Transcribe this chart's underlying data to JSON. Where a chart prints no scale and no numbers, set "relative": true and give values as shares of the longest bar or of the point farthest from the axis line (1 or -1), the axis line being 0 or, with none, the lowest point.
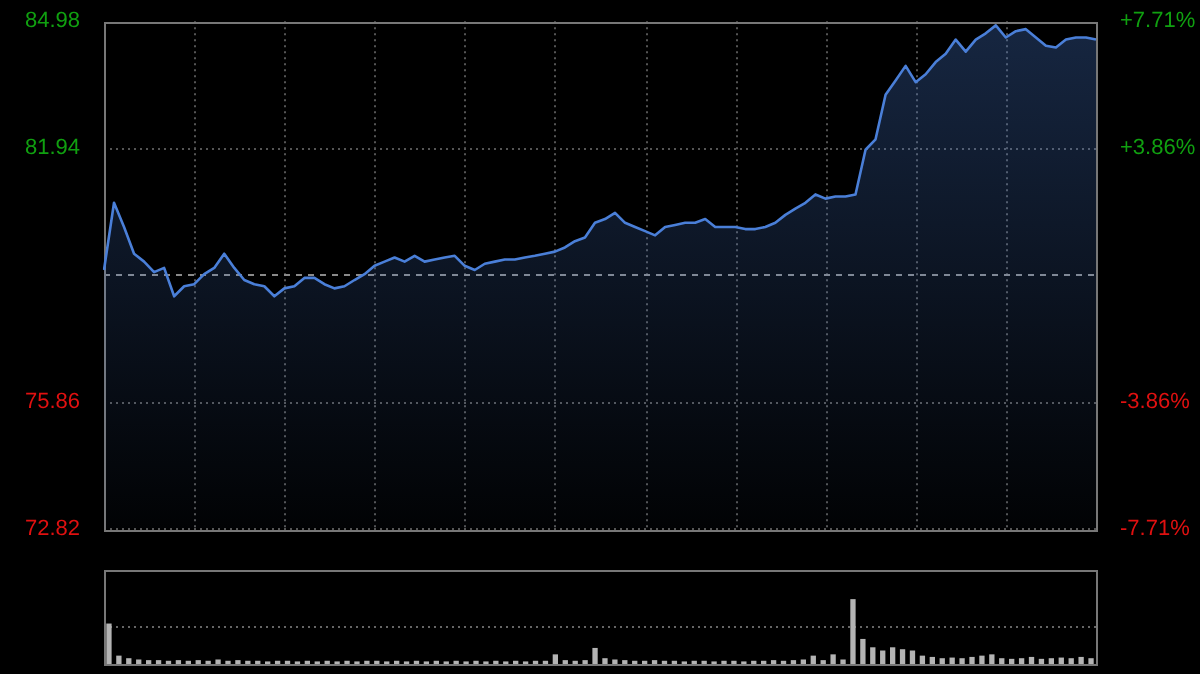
{
  "chart_data": [
    {
      "type": "area",
      "categories": [
        null,
        null,
        null,
        null,
        null,
        null,
        null,
        null,
        null,
        null,
        null,
        null,
        null,
        null,
        null,
        null,
        null,
        null,
        null,
        null,
        null,
        null,
        null,
        null,
        null,
        null,
        null,
        null,
        null,
        null,
        null,
        null,
        null,
        null,
        null,
        null,
        null,
        null,
        null,
        null,
        null,
        null,
        null,
        null,
        null,
        null,
        null,
        null,
        null,
        null,
        null,
        null,
        null,
        null,
        null,
        null,
        null,
        null,
        null,
        null,
        null,
        null,
        null,
        null,
        null,
        null,
        null,
        null,
        null,
        null,
        null,
        null,
        null,
        null,
        null,
        null,
        null,
        null,
        null,
        null,
        null,
        null,
        null,
        null,
        null,
        null,
        null,
        null,
        null,
        null,
        null,
        null,
        null,
        null,
        null,
        null,
        null,
        null,
        null,
        null
      ],
      "values": [
        79.02,
        80.63,
        80.05,
        79.41,
        79.22,
        78.97,
        79.07,
        78.39,
        78.63,
        78.68,
        78.92,
        79.07,
        79.41,
        79.07,
        78.78,
        78.68,
        78.63,
        78.39,
        78.58,
        78.63,
        78.83,
        78.83,
        78.68,
        78.58,
        78.63,
        78.78,
        78.92,
        79.12,
        79.22,
        79.32,
        79.22,
        79.36,
        79.22,
        79.27,
        79.32,
        79.36,
        79.12,
        79.02,
        79.17,
        79.22,
        79.27,
        79.27,
        79.32,
        79.36,
        79.41,
        79.46,
        79.56,
        79.71,
        79.8,
        80.15,
        80.24,
        80.39,
        80.15,
        80.05,
        79.95,
        79.85,
        80.05,
        80.1,
        80.15,
        80.15,
        80.24,
        80.05,
        80.05,
        80.05,
        80.0,
        80.0,
        80.05,
        80.15,
        80.34,
        80.49,
        80.63,
        80.83,
        80.73,
        80.78,
        80.78,
        80.83,
        81.9,
        82.15,
        83.22,
        83.56,
        83.91,
        83.52,
        83.71,
        84.0,
        84.2,
        84.54,
        84.25,
        84.54,
        84.69,
        84.88,
        84.59,
        84.74,
        84.79,
        84.59,
        84.39,
        84.35,
        84.54,
        84.59,
        84.59,
        84.54
      ],
      "color": "#4a7fd8",
      "ylim": [
        72.82,
        84.98
      ],
      "yticks": [
        72.82,
        75.86,
        81.94,
        84.98
      ],
      "y2lim": [
        -7.71,
        7.71
      ],
      "y2ticks": [
        {
          "value": -7.71,
          "label": "-7.71%"
        },
        {
          "value": -3.86,
          "label": "-3.86%"
        },
        {
          "value": 3.86,
          "label": "+3.86%"
        },
        {
          "value": 7.71,
          "label": "+7.71%"
        }
      ],
      "ref_lines": [
        {
          "axis": "y",
          "value": 78.9,
          "color": "#8a8a8a",
          "line_style": "dashed"
        }
      ],
      "grid": true,
      "legend": false,
      "tick_labels": "y"
    },
    {
      "type": "bar",
      "relative": true,
      "categories": [
        null,
        null,
        null,
        null,
        null,
        null,
        null,
        null,
        null,
        null,
        null,
        null,
        null,
        null,
        null,
        null,
        null,
        null,
        null,
        null,
        null,
        null,
        null,
        null,
        null,
        null,
        null,
        null,
        null,
        null,
        null,
        null,
        null,
        null,
        null,
        null,
        null,
        null,
        null,
        null,
        null,
        null,
        null,
        null,
        null,
        null,
        null,
        null,
        null,
        null,
        null,
        null,
        null,
        null,
        null,
        null,
        null,
        null,
        null,
        null,
        null,
        null,
        null,
        null,
        null,
        null,
        null,
        null,
        null,
        null,
        null,
        null,
        null,
        null,
        null,
        null,
        null,
        null,
        null,
        null,
        null,
        null,
        null,
        null,
        null,
        null,
        null,
        null,
        null,
        null,
        null,
        null,
        null,
        null,
        null,
        null,
        null,
        null,
        null,
        null
      ],
      "values": [
        0.62,
        0.12,
        0.08,
        0.06,
        0.05,
        0.05,
        0.04,
        0.05,
        0.04,
        0.05,
        0.04,
        0.06,
        0.04,
        0.05,
        0.04,
        0.04,
        0.03,
        0.04,
        0.04,
        0.03,
        0.04,
        0.03,
        0.04,
        0.03,
        0.04,
        0.03,
        0.04,
        0.04,
        0.03,
        0.04,
        0.03,
        0.04,
        0.03,
        0.04,
        0.03,
        0.04,
        0.03,
        0.04,
        0.03,
        0.04,
        0.03,
        0.04,
        0.03,
        0.04,
        0.04,
        0.14,
        0.05,
        0.04,
        0.05,
        0.24,
        0.08,
        0.06,
        0.05,
        0.04,
        0.04,
        0.05,
        0.04,
        0.04,
        0.03,
        0.04,
        0.04,
        0.03,
        0.04,
        0.04,
        0.03,
        0.04,
        0.04,
        0.05,
        0.04,
        0.05,
        0.06,
        0.12,
        0.05,
        0.14,
        0.06,
        1,
        0.38,
        0.25,
        0.2,
        0.25,
        0.22,
        0.2,
        0.12,
        0.1,
        0.08,
        0.09,
        0.08,
        0.1,
        0.12,
        0.14,
        0.08,
        0.07,
        0.08,
        0.1,
        0.07,
        0.08,
        0.09,
        0.08,
        0.1,
        0.08
      ],
      "color": "#b4b4b4",
      "ref_lines": [
        {
          "axis": "y",
          "value": 0.6,
          "color": "#666666",
          "line_style": "dotted"
        }
      ],
      "legend": false,
      "tick_labels": false
    }
  ]
}
